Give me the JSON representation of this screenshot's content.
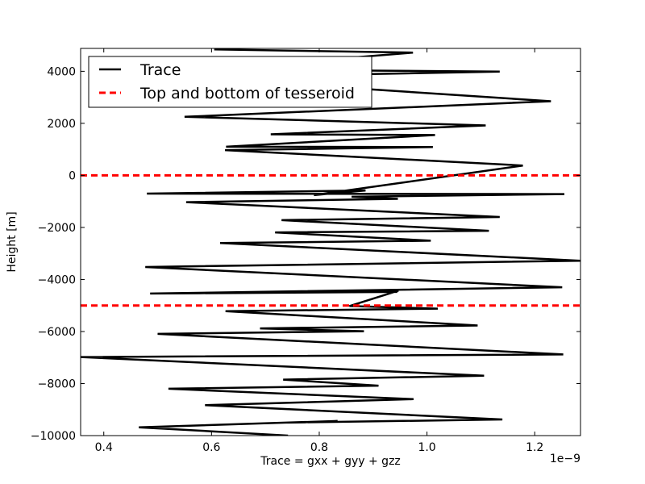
{
  "chart_data": {
    "type": "line",
    "xlabel": "Trace = gxx + gyy + gzz",
    "ylabel": "Height [m]",
    "x_scale_label": "1e−9",
    "xlim": [
      0.357,
      1.285
    ],
    "ylim": [
      -10000,
      4880
    ],
    "x_ticks": [
      {
        "value": 0.4,
        "label": "0.4"
      },
      {
        "value": 0.6,
        "label": "0.6"
      },
      {
        "value": 0.8,
        "label": "0.8"
      },
      {
        "value": 1.0,
        "label": "1.0"
      },
      {
        "value": 1.2,
        "label": "1.2"
      }
    ],
    "y_ticks": [
      {
        "value": 4000,
        "label": "4000"
      },
      {
        "value": 2000,
        "label": "2000"
      },
      {
        "value": 0,
        "label": "0"
      },
      {
        "value": -2000,
        "label": "−2000"
      },
      {
        "value": -4000,
        "label": "−4000"
      },
      {
        "value": -6000,
        "label": "−6000"
      },
      {
        "value": -8000,
        "label": "−8000"
      },
      {
        "value": -10000,
        "label": "−10000"
      }
    ],
    "legend_position": "top-left",
    "series": [
      {
        "name": "Trace",
        "color": "#000000",
        "style": "solid",
        "x": [
          0.742,
          0.465,
          0.834,
          0.743,
          1.14,
          0.588,
          0.975,
          0.52,
          0.91,
          0.733,
          1.106,
          0.357,
          1.253,
          0.5,
          0.883,
          0.69,
          1.094,
          0.626,
          1.02,
          0.856,
          0.947,
          0.846,
          0.945,
          0.486,
          1.251,
          0.477,
          1.285,
          0.616,
          1.007,
          0.718,
          1.115,
          0.73,
          1.135,
          0.553,
          0.946,
          0.86,
          1.255,
          0.48,
          0.886,
          0.79,
          1.178,
          0.625,
          1.011,
          0.627,
          1.015,
          0.71,
          1.109,
          0.55,
          1.23,
          0.56,
          1.135,
          0.589,
          0.974,
          0.605
        ],
        "y": [
          -10000,
          -9680,
          -9440,
          -9500,
          -9380,
          -8830,
          -8600,
          -8200,
          -8080,
          -7850,
          -7700,
          -6980,
          -6880,
          -6090,
          -5990,
          -5880,
          -5770,
          -5220,
          -5120,
          -5020,
          -4430,
          -4430,
          -4480,
          -4540,
          -4300,
          -3520,
          -3280,
          -2600,
          -2510,
          -2190,
          -2130,
          -1720,
          -1600,
          -1030,
          -900,
          -820,
          -720,
          -700,
          -580,
          -760,
          380,
          970,
          1090,
          1100,
          1550,
          1580,
          1920,
          2250,
          2850,
          3760,
          3990,
          4070,
          4720,
          4840
        ]
      },
      {
        "name": "Top and bottom of tesseroid",
        "color": "#ff0000",
        "style": "dashed",
        "y_levels": [
          0,
          -5000
        ]
      }
    ]
  }
}
